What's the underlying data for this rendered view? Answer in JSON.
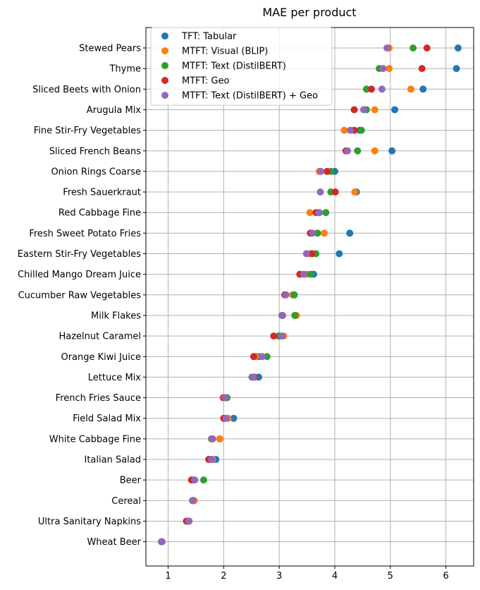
{
  "chart_data": {
    "type": "scatter",
    "title": "MAE per product",
    "xlabel": "",
    "ylabel": "",
    "xlim": [
      0.6,
      6.5
    ],
    "x_ticks": [
      1,
      2,
      3,
      4,
      5,
      6
    ],
    "grid": true,
    "legend_position": "top-left",
    "categories": [
      "Stewed Pears",
      "Thyme",
      "Sliced Beets with Onion",
      "Arugula Mix",
      "Fine Stir-Fry Vegetables",
      "Sliced French Beans",
      "Onion Rings Coarse",
      "Fresh Sauerkraut",
      "Red Cabbage Fine",
      "Fresh Sweet Potato Fries",
      "Eastern Stir-Fry Vegetables",
      "Chilled Mango Dream Juice",
      "Cucumber Raw Vegetables",
      "Milk Flakes",
      "Hazelnut Caramel",
      "Orange Kiwi Juice",
      "Lettuce Mix",
      "French Fries Sauce",
      "Field Salad Mix",
      "White Cabbage Fine",
      "Italian Salad",
      "Beer",
      "Cereal",
      "Ultra Sanitary Napkins",
      "Wheat Beer"
    ],
    "series": [
      {
        "name": "TFT: Tabular",
        "color": "#1f77b4",
        "values": [
          6.22,
          6.19,
          5.59,
          5.08,
          4.45,
          5.03,
          4.0,
          4.39,
          3.72,
          4.27,
          4.08,
          3.62,
          3.27,
          3.05,
          2.99,
          2.63,
          2.63,
          2.05,
          2.18,
          1.93,
          1.86,
          1.46,
          1.46,
          1.37,
          0.89
        ]
      },
      {
        "name": "MTFT: Visual (BLIP)",
        "color": "#ff7f0e",
        "values": [
          4.98,
          4.98,
          5.37,
          4.72,
          4.17,
          4.72,
          3.72,
          4.36,
          3.55,
          3.81,
          3.55,
          3.49,
          3.24,
          3.31,
          3.08,
          2.58,
          2.53,
          1.99,
          2.08,
          1.93,
          1.8,
          1.46,
          1.47,
          1.38,
          0.88
        ]
      },
      {
        "name": "MTFT: Text (DistilBERT)",
        "color": "#2ca02c",
        "values": [
          5.41,
          4.8,
          4.57,
          4.57,
          4.48,
          4.41,
          3.93,
          3.93,
          3.84,
          3.69,
          3.66,
          3.56,
          3.27,
          3.28,
          3.01,
          2.78,
          2.51,
          2.06,
          2.03,
          1.78,
          1.77,
          1.64,
          1.44,
          1.34,
          0.88
        ]
      },
      {
        "name": "MTFT: Geo",
        "color": "#d62728",
        "values": [
          5.66,
          5.57,
          4.66,
          4.35,
          4.35,
          4.2,
          3.86,
          4.01,
          3.66,
          3.56,
          3.59,
          3.37,
          3.1,
          3.06,
          2.9,
          2.54,
          2.55,
          2.0,
          2.0,
          1.8,
          1.73,
          1.42,
          1.44,
          1.33,
          0.88
        ]
      },
      {
        "name": "MTFT: Text (DistilBERT) + Geo",
        "color": "#9467bd",
        "values": [
          4.94,
          4.87,
          4.85,
          4.52,
          4.28,
          4.23,
          3.75,
          3.74,
          3.71,
          3.6,
          3.49,
          3.44,
          3.12,
          3.06,
          3.05,
          2.69,
          2.53,
          2.02,
          2.04,
          1.79,
          1.78,
          1.48,
          1.44,
          1.37,
          0.88
        ]
      }
    ]
  }
}
